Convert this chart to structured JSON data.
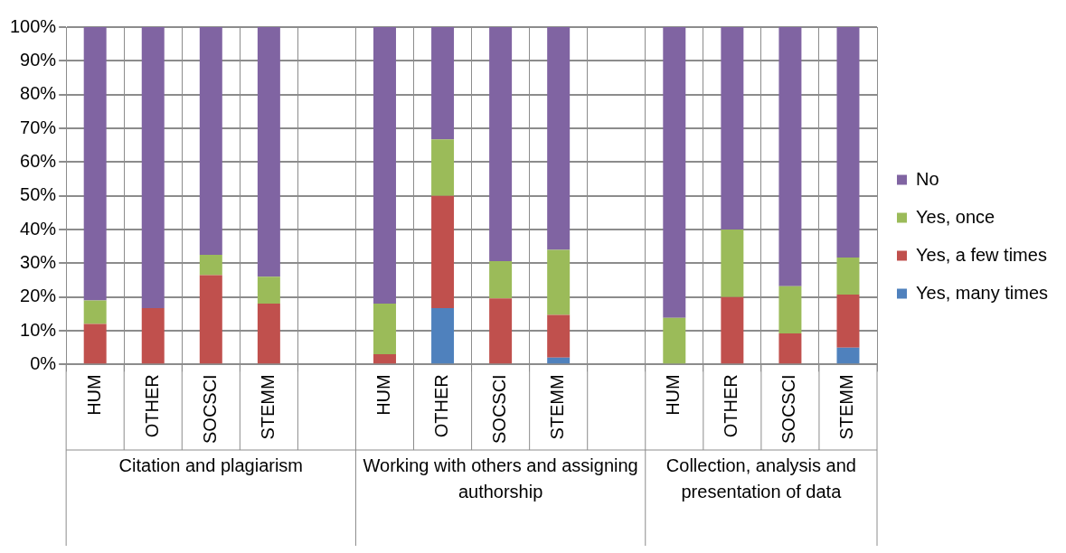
{
  "chart_data": {
    "type": "bar",
    "stacked": true,
    "categories": [
      "HUM",
      "OTHER",
      "SOCSCI",
      "STEMM",
      null,
      "HUM",
      "OTHER",
      "SOCSCI",
      "STEMM",
      null,
      "HUM",
      "OTHER",
      "SOCSCI",
      "STEMM"
    ],
    "series": [
      {
        "name": "Yes, many times",
        "color": "#4f81bd",
        "values": [
          0,
          0,
          0,
          0,
          null,
          0,
          16.7,
          0,
          2,
          null,
          0,
          0,
          0,
          5
        ]
      },
      {
        "name": "Yes, a few times",
        "color": "#c0504d",
        "values": [
          12,
          16.7,
          26.5,
          18,
          null,
          3,
          33.3,
          19.6,
          12.7,
          null,
          0,
          20,
          9.2,
          15.7
        ]
      },
      {
        "name": "Yes, once",
        "color": "#9bbb59",
        "values": [
          7,
          0,
          6,
          8,
          null,
          15,
          16.7,
          11,
          19.3,
          null,
          13.8,
          20,
          14,
          11
        ]
      },
      {
        "name": "No",
        "color": "#8064a2",
        "values": [
          81,
          83.3,
          67.5,
          74,
          null,
          82,
          33.3,
          69.4,
          66,
          null,
          86.2,
          60,
          76.8,
          68.3
        ]
      }
    ],
    "ylim": [
      0,
      100
    ],
    "yticks": [
      {
        "value": 0,
        "label": "0%"
      },
      {
        "value": 10,
        "label": "10%"
      },
      {
        "value": 20,
        "label": "20%"
      },
      {
        "value": 30,
        "label": "30%"
      },
      {
        "value": 40,
        "label": "40%"
      },
      {
        "value": 50,
        "label": "50%"
      },
      {
        "value": 60,
        "label": "60%"
      },
      {
        "value": 70,
        "label": "70%"
      },
      {
        "value": 80,
        "label": "80%"
      },
      {
        "value": 90,
        "label": "90%"
      },
      {
        "value": 100,
        "label": "100%"
      }
    ],
    "grid": true,
    "legend": "right",
    "annotations": [
      "Citation and plagiarism",
      "Working with others and assigning authorship",
      "Collection, analysis and presentation of data"
    ]
  }
}
